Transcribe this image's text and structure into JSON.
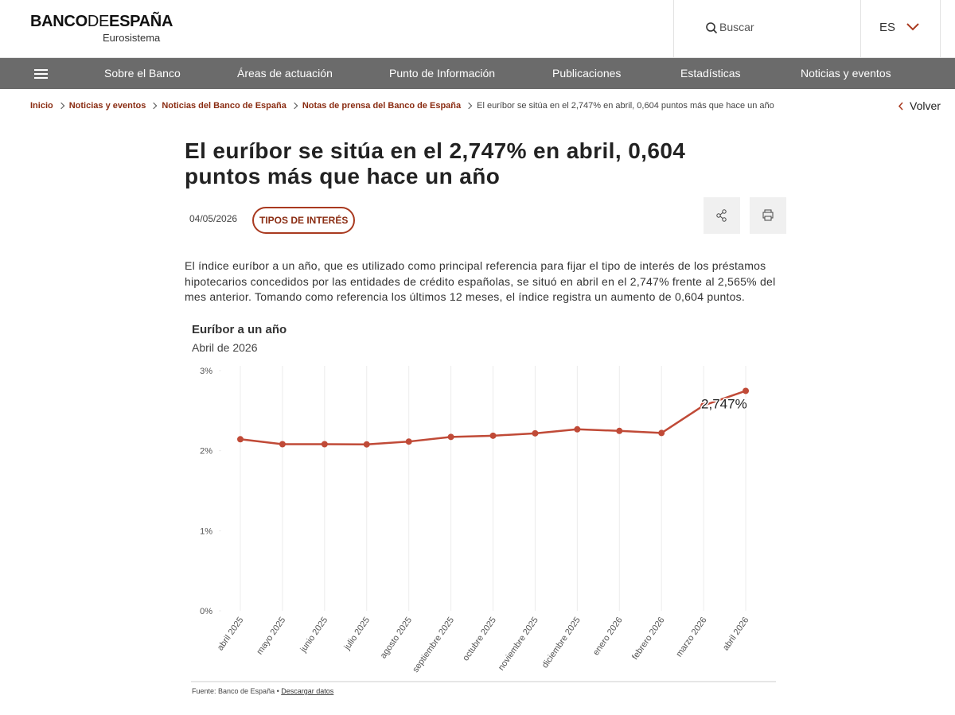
{
  "header": {
    "logo": [
      "BANCO",
      "DE",
      "ESPAÑA"
    ],
    "logo_subtitle": "Eurosistema",
    "search": "Buscar",
    "language": "ES"
  },
  "nav": [
    "Sobre el Banco",
    "Áreas de actuación",
    "Punto de Información",
    "Publicaciones",
    "Estadísticas",
    "Noticias y eventos"
  ],
  "breadcrumbs": [
    "Inicio",
    "Noticias y eventos",
    "Noticias del Banco de España",
    "Notas de prensa del Banco de España",
    "El euríbor se sitúa en el 2,747% en abril, 0,604 puntos más que hace un año"
  ],
  "back": "Volver",
  "article": {
    "title": "El euríbor se sitúa en el 2,747% en abril, 0,604 puntos más que hace un año",
    "date": "04/05/2026",
    "tag": "TIPOS DE INTERÉS",
    "body": "El índice euríbor a un año, que es utilizado como principal referencia para fijar el tipo de interés de los préstamos hipotecarios concedidos por las entidades de crédito españolas, se situó en abril en el 2,747% frente al 2,565% del mes anterior. Tomando como referencia los últimos 12 meses, el índice registra un aumento de 0,604 puntos."
  },
  "chart_data": {
    "type": "line",
    "title": "Euríbor a un año",
    "subtitle": "Abril de 2026",
    "categories": [
      "abril 2025",
      "mayo 2025",
      "junio 2025",
      "julio 2025",
      "agosto 2025",
      "septiembre 2025",
      "octubre 2025",
      "noviembre 2025",
      "diciembre 2025",
      "enero 2026",
      "febrero 2026",
      "marzo 2026",
      "abril 2026"
    ],
    "values": [
      2.143,
      2.081,
      2.081,
      2.079,
      2.114,
      2.172,
      2.187,
      2.217,
      2.267,
      2.247,
      2.221,
      2.565,
      2.747
    ],
    "value_labels": [
      null,
      null,
      null,
      null,
      null,
      null,
      null,
      null,
      null,
      null,
      null,
      null,
      "2,747%"
    ],
    "color": "#c04a37",
    "ylim": [
      0,
      3
    ],
    "yticks": [
      {
        "value": 0,
        "label": "0%"
      },
      {
        "value": 1,
        "label": "1%"
      },
      {
        "value": 2,
        "label": "2%"
      },
      {
        "value": 3,
        "label": "3%"
      }
    ],
    "source": "Fuente: Banco de España •",
    "download": "Descargar datos"
  }
}
